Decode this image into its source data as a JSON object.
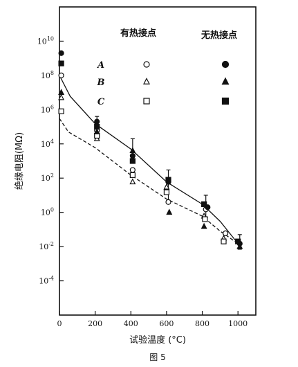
{
  "chart_data": {
    "type": "scatter",
    "title": "",
    "caption": "图 5",
    "xlabel": "试验温度 (°C)",
    "ylabel": "绝缘电阻(MΩ)",
    "xlim": [
      0,
      1100
    ],
    "ylim_log10": [
      -6,
      12
    ],
    "y_scale": "log",
    "x_ticks": [
      0,
      200,
      400,
      600,
      800,
      1000
    ],
    "y_ticks": [
      {
        "exp": 10,
        "label": "10"
      },
      {
        "exp": 8,
        "label": "8"
      },
      {
        "exp": 6,
        "label": "6"
      },
      {
        "exp": 4,
        "label": "4"
      },
      {
        "exp": 2,
        "label": "2"
      },
      {
        "exp": 0,
        "label": "0"
      },
      {
        "exp": -2,
        "label": "-2"
      },
      {
        "exp": -4,
        "label": "-4"
      }
    ],
    "y_tick_base": "10",
    "legend": {
      "header_with": "有热接点",
      "header_without": "无热接点",
      "rows": [
        "A",
        "B",
        "C"
      ]
    },
    "series": [
      {
        "name": "A",
        "hot_junction": true,
        "marker": "circle-open",
        "x": [
          10,
          210,
          410,
          610,
          820,
          930
        ],
        "y": [
          100000000.0,
          60000.0,
          300,
          4,
          1.5,
          0.06
        ]
      },
      {
        "name": "B",
        "hot_junction": true,
        "marker": "triangle-open",
        "x": [
          10,
          210,
          410,
          600,
          810,
          920
        ],
        "y": [
          5000000.0,
          20000.0,
          60,
          30,
          0.6,
          0.03
        ]
      },
      {
        "name": "C",
        "hot_junction": true,
        "marker": "square-open",
        "x": [
          10,
          210,
          410,
          600,
          815,
          920
        ],
        "y": [
          800000.0,
          30000.0,
          150,
          15,
          0.4,
          0.02
        ]
      },
      {
        "name": "A",
        "hot_junction": false,
        "marker": "circle-filled",
        "x": [
          10,
          210,
          410,
          610,
          830,
          1010
        ],
        "y": [
          2000000000.0,
          200000.0,
          2000.0,
          60,
          2,
          0.015
        ]
      },
      {
        "name": "B",
        "hot_junction": false,
        "marker": "triangle-filled",
        "x": [
          10,
          210,
          410,
          615,
          810,
          1010
        ],
        "y": [
          10000000.0,
          50000.0,
          4000.0,
          1,
          0.15,
          0.01
        ]
      },
      {
        "name": "C",
        "hot_junction": false,
        "marker": "square-filled",
        "x": [
          10,
          210,
          410,
          610,
          810,
          1000
        ],
        "y": [
          500000000.0,
          100000.0,
          1000.0,
          80,
          3,
          0.02
        ]
      }
    ],
    "error_bars": [
      {
        "x": 210,
        "low": 20000.0,
        "high": 400000.0
      },
      {
        "x": 410,
        "low": 1000.0,
        "high": 20000.0
      },
      {
        "x": 610,
        "low": 5,
        "high": 300
      },
      {
        "x": 820,
        "low": 0.5,
        "high": 10
      },
      {
        "x": 1010,
        "low": 0.007,
        "high": 0.05
      }
    ],
    "trend_lines": [
      {
        "name": "with",
        "style": "dashed",
        "x": [
          0,
          50,
          200,
          400,
          600,
          800,
          900,
          1000
        ],
        "y": [
          300000.0,
          50000.0,
          6000.0,
          150,
          6,
          0.6,
          0.08,
          0.015
        ]
      },
      {
        "name": "without",
        "style": "solid",
        "x": [
          0,
          60,
          200,
          400,
          600,
          800,
          900,
          1000
        ],
        "y": [
          100000000.0,
          6000000.0,
          150000.0,
          5000.0,
          60,
          3,
          0.3,
          0.015
        ]
      }
    ]
  }
}
